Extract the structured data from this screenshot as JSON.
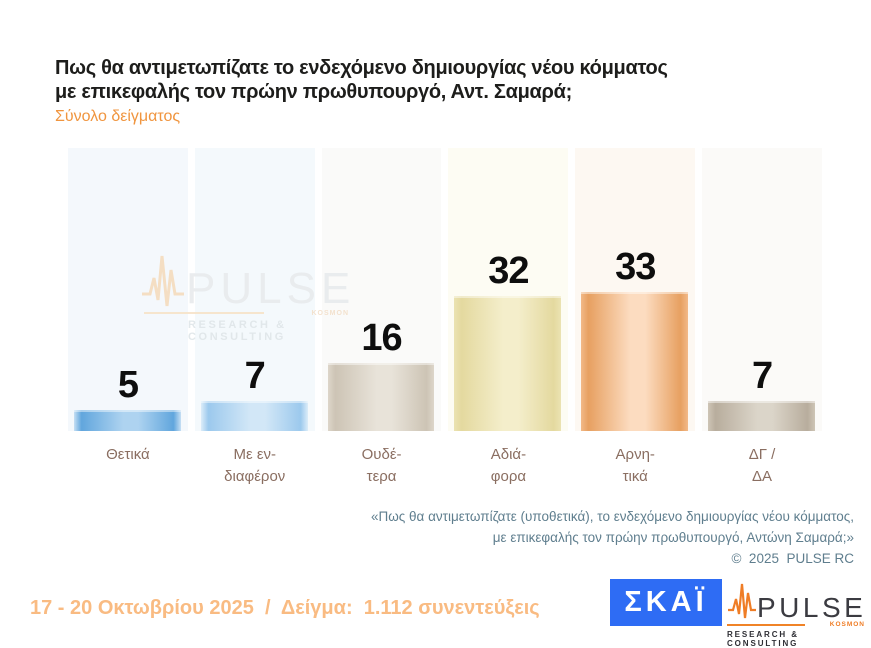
{
  "header": {
    "title_line1": "Πως θα αντιμετωπίζατε το ενδεχόμενο δημιουργίας νέου κόμματος",
    "title_line2": "με επικεφαλής τον πρώην πρωθυπουργό, Αντ. Σαμαρά;",
    "subtitle": "Σύνολο δείγματος"
  },
  "chart_data": {
    "type": "bar",
    "title": "Πως θα αντιμετωπίζατε το ενδεχόμενο δημιουργίας νέου κόμματος με επικεφαλής τον πρώην πρωθυπουργό, Αντ. Σαμαρά;",
    "subtitle": "Σύνολο δείγματος",
    "categories": [
      "Θετικά",
      "Με ενδιαφέρον",
      "Ουδέτερα",
      "Αδιάφορα",
      "Αρνητικά",
      "ΔΓ / ΔΑ"
    ],
    "values": [
      5,
      7,
      16,
      32,
      33,
      7
    ],
    "xlabel": "",
    "ylabel": "",
    "ylim": [
      0,
      67
    ],
    "grid": false,
    "legend": false,
    "data_labels": true,
    "data_label_color": "#0e0e0e",
    "bar_gradients": [
      {
        "edge": "#c6dff4",
        "dark": "#61a6dd",
        "light": "#aed3f0"
      },
      {
        "edge": "#dcedf9",
        "dark": "#9cc9ed",
        "light": "#d2e7f7"
      },
      {
        "edge": "#ddd6ca",
        "dark": "#cdc4b5",
        "light": "#e8e3d9"
      },
      {
        "edge": "#ebe3b2",
        "dark": "#e4d99f",
        "light": "#f4eecb"
      },
      {
        "edge": "#f2b988",
        "dark": "#e7a061",
        "light": "#fcdcc0"
      },
      {
        "edge": "#cec5b6",
        "dark": "#b8ad9d",
        "light": "#dbd5c9"
      }
    ],
    "track_colors": [
      "#f4f8fc",
      "#f4f9fc",
      "#fafaf9",
      "#fdfcf3",
      "#fdf8f2",
      "#fbfaf8"
    ]
  },
  "chart_display": {
    "category_lines": [
      "Θετικά",
      "Με εν-\nδιαφέρον",
      "Ουδέ-\nτερα",
      "Αδιά-\nφορα",
      "Αρνη-\nτικά",
      "ΔΓ /\nΔΑ"
    ]
  },
  "footnote": {
    "line1": "«Πως θα αντιμετωπίζατε (υποθετικά), το ενδεχόμενο δημιουργίας νέου κόμματος,",
    "line2": "με επικεφαλής τον πρώην πρωθυπουργό, Αντώνη Σαμαρά;»",
    "line3": "©  2025  PULSE RC"
  },
  "footer": {
    "fieldwork": "17 - 20 Οκτωβρίου 2025  /  Δείγμα:  1.112 συνεντεύξεις"
  },
  "logos": {
    "skai": {
      "text": "ΣΚΑΪ"
    },
    "pulse": {
      "word": "PULSE",
      "small": "KOSMON",
      "tagline": "RESEARCH & CONSULTING"
    }
  },
  "colors": {
    "title": "#1d1d1b",
    "subtitle_orange": "#f0953f",
    "xlabel_brown": "#8a6e61",
    "footnote_bluegray": "#5f7e8e",
    "fieldwork_orange": "#f9bb82",
    "skai_blue": "#2e6cf4",
    "pulse_orange": "#ef7d26"
  }
}
